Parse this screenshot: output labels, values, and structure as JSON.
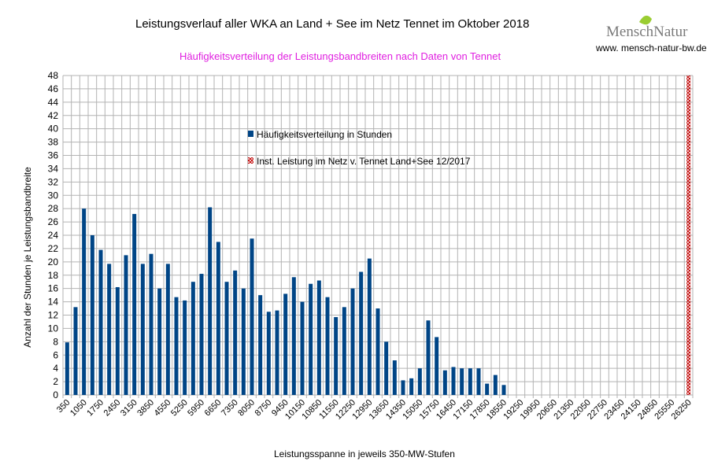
{
  "chart_data": {
    "type": "bar",
    "title": "Leistungsverlauf aller WKA an Land + See im Netz Tennet im Oktober 2018",
    "subtitle": "Häufigkeitsverteilung der Leistungsbandbreiten nach Daten von Tennet",
    "xlabel": "Leistungsspanne in jeweils 350-MW-Stufen",
    "ylabel": "Anzahl der Stunden je Leistungsbandbreite",
    "ylim": [
      0,
      48
    ],
    "ytick_step": 2,
    "bin_width": 350,
    "bin_count": 75,
    "x_tick_labels_every": 2,
    "grid": true,
    "legend": [
      "Häufigkeitsverteilung in Stunden",
      "Inst. Leistung im Netz v. Tennet  Land+See 12/2017"
    ],
    "series": [
      {
        "name": "Häufigkeitsverteilung in Stunden",
        "color": "#004586",
        "values": [
          7.9,
          13.2,
          28,
          24,
          21.8,
          19.7,
          16.2,
          21,
          27.2,
          19.7,
          21.2,
          16,
          19.7,
          14.7,
          14.2,
          17,
          18.2,
          28.2,
          23,
          17,
          18.7,
          16,
          23.5,
          15,
          12.5,
          12.7,
          15.2,
          17.7,
          14,
          16.7,
          17.2,
          14.7,
          11.7,
          13.2,
          16,
          18.5,
          20.5,
          13,
          8,
          5.2,
          2.2,
          2.5,
          4,
          11.2,
          8.7,
          3.7,
          4.2,
          4,
          4,
          4,
          1.7,
          3,
          1.5
        ]
      },
      {
        "name": "Inst. Leistung im Netz v. Tennet  Land+See 12/2017",
        "color": "#c00000",
        "bin_value": 26250,
        "value": 48
      }
    ]
  },
  "logo": {
    "name": "MenschNatur",
    "url": "www. mensch-natur-bw.de"
  }
}
